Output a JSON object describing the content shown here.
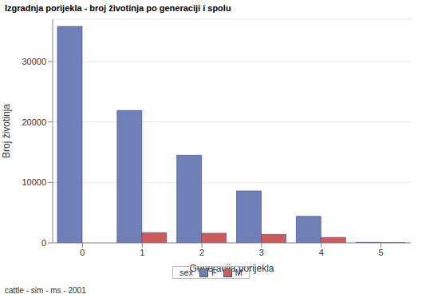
{
  "chart_data": {
    "type": "bar",
    "title": "Izgradnja porijekla - broj životinja po generaciji i spolu",
    "x_label": "Generacija porijekla",
    "y_label": "Broj životinja",
    "legend_title": "sex",
    "footnote": "cattle - sim - ms - 2001",
    "categories": [
      0,
      1,
      2,
      3,
      4,
      5
    ],
    "series": [
      {
        "name": "F",
        "color": "#6f7fb8",
        "values": [
          35800,
          21900,
          14500,
          8600,
          4400,
          100
        ]
      },
      {
        "name": "M",
        "color": "#cd5b5b",
        "values": [
          null,
          1700,
          1600,
          1400,
          900,
          50
        ]
      }
    ],
    "ylim": [
      0,
      37000
    ],
    "yticks": [
      0,
      10000,
      20000,
      30000
    ],
    "grid": true,
    "legend": "bottom"
  }
}
